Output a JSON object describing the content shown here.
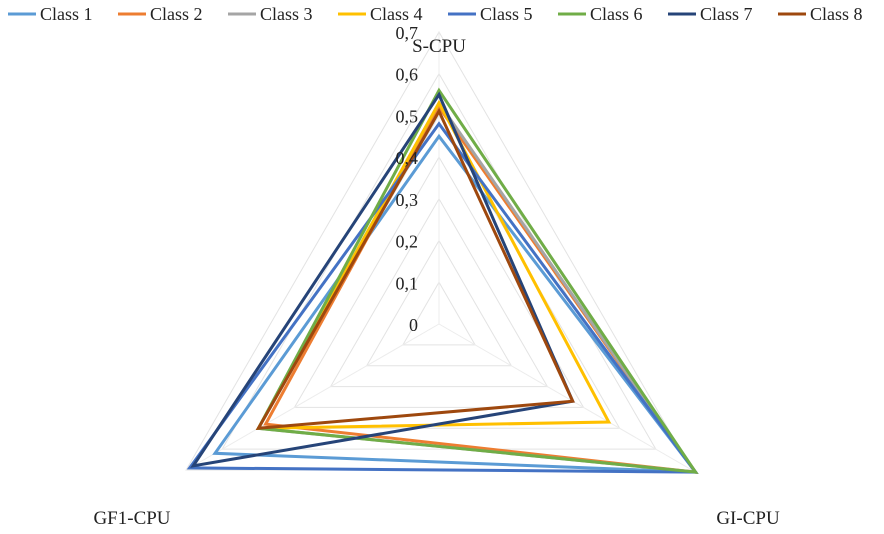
{
  "chart_data": {
    "type": "radar",
    "axes": [
      "S-CPU",
      "GI-CPU",
      "GF1-CPU"
    ],
    "tick_labels": [
      "0",
      "0,1",
      "0,2",
      "0,3",
      "0,4",
      "0,5",
      "0,6",
      "0,7"
    ],
    "range": [
      0,
      0.7
    ],
    "grid": true,
    "legend": "top",
    "series": [
      {
        "name": "Class 1",
        "color": "#5B9BD5",
        "values": [
          0.45,
          0.71,
          0.62
        ]
      },
      {
        "name": "Class 2",
        "color": "#ED7D31",
        "values": [
          0.52,
          0.71,
          0.48
        ]
      },
      {
        "name": "Class 3",
        "color": "#A5A5A5",
        "values": [
          0.53,
          0.71,
          0.5
        ]
      },
      {
        "name": "Class 4",
        "color": "#FFC000",
        "values": [
          0.53,
          0.47,
          0.5
        ]
      },
      {
        "name": "Class 5",
        "color": "#4472C4",
        "values": [
          0.48,
          0.71,
          0.69
        ]
      },
      {
        "name": "Class 6",
        "color": "#70AD47",
        "values": [
          0.56,
          0.71,
          0.5
        ]
      },
      {
        "name": "Class 7",
        "color": "#264478",
        "values": [
          0.55,
          0.37,
          0.68
        ]
      },
      {
        "name": "Class 8",
        "color": "#9E480E",
        "values": [
          0.51,
          0.37,
          0.5
        ]
      }
    ]
  }
}
